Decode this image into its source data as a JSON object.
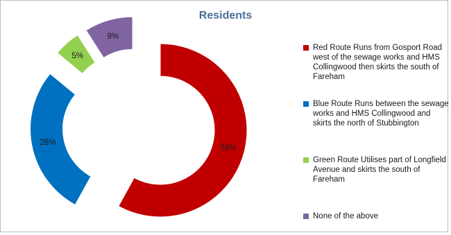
{
  "chart_data": {
    "type": "pie",
    "variant": "exploded-doughnut",
    "title": "Residents",
    "legend_position": "right",
    "slices": [
      {
        "label": "Red Route Runs from Gosport Road west of the sewage works and HMS Collingwood then skirts the south of Fareham",
        "value": 58,
        "value_label": "58%",
        "color": "#c00000"
      },
      {
        "label": "Blue Route  Runs between the sewage works and HMS Collingwood and skirts the north of Stubbington",
        "value": 28,
        "value_label": "28%",
        "color": "#0070c0"
      },
      {
        "label": "Green Route  Utilises part of Longfield Avenue and skirts the south of Fareham",
        "value": 5,
        "value_label": "5%",
        "color": "#92d050"
      },
      {
        "label": "None of the above",
        "value": 9,
        "value_label": "9%",
        "color": "#8064a2"
      }
    ]
  }
}
